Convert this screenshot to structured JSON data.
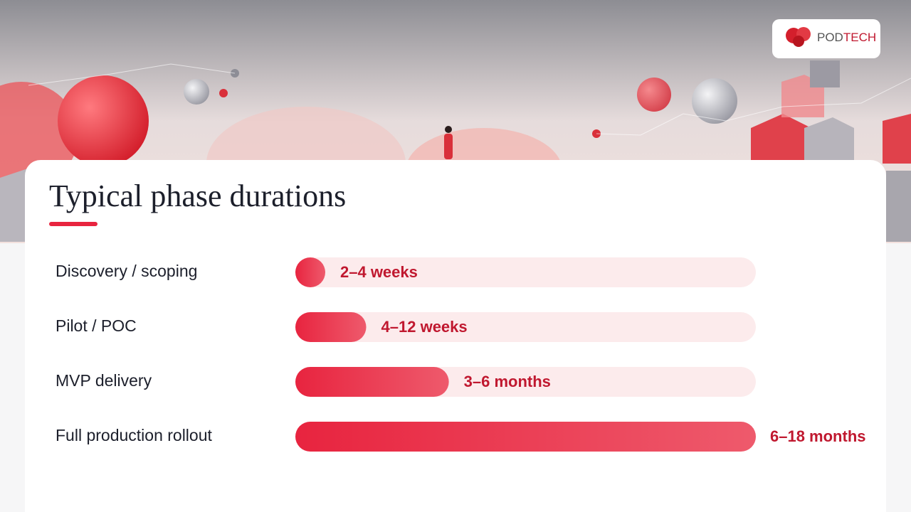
{
  "brand": {
    "part1": "POD",
    "part2": "TECH"
  },
  "chart_data": {
    "type": "bar",
    "orientation": "horizontal",
    "title": "Typical phase durations",
    "categories": [
      "Discovery / scoping",
      "Pilot / POC",
      "MVP delivery",
      "Full production rollout"
    ],
    "values": [
      4,
      12,
      26,
      78
    ],
    "value_labels": [
      "2–4 weeks",
      "4–12 weeks",
      "3–6 months",
      "6–18 months"
    ],
    "color": "#e8243f"
  }
}
